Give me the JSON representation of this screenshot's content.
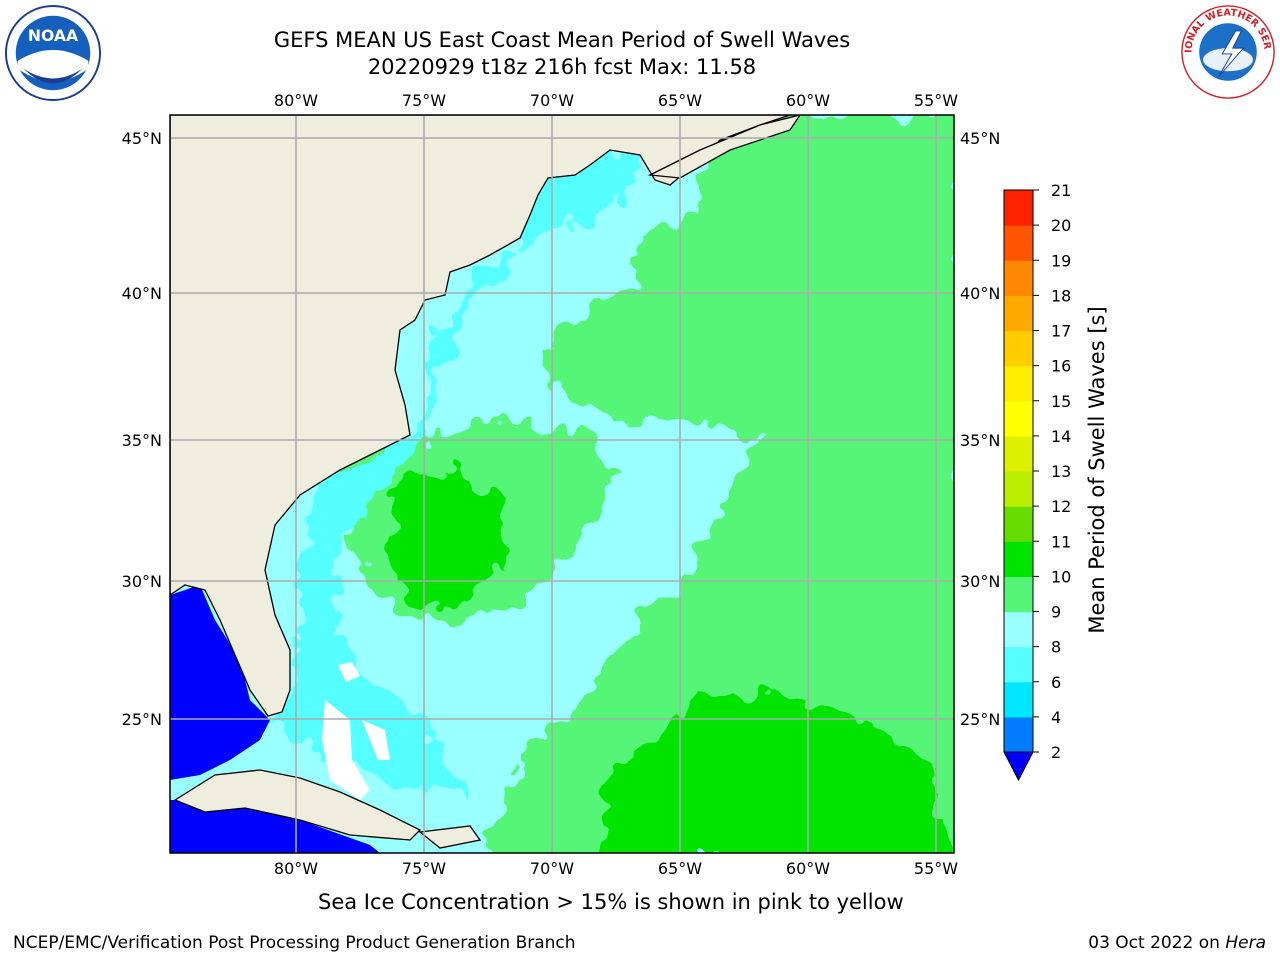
{
  "header": {
    "title_line1": "GEFS MEAN US East Coast Mean Period of Swell Waves",
    "title_line2": "20220929 t18z 216h fcst   Max: 11.58"
  },
  "logos": {
    "left": {
      "icon": "noaa-logo",
      "text": "NOAA"
    },
    "right": {
      "icon": "nws-logo",
      "text": "NATIONAL WEATHER SERVICE"
    }
  },
  "map": {
    "lon_labels": [
      "80°W",
      "75°W",
      "70°W",
      "65°W",
      "60°W",
      "55°W"
    ],
    "lat_labels": [
      "45°N",
      "40°N",
      "35°N",
      "30°N",
      "25°N"
    ],
    "land_color": "#efedde",
    "ocean_shading": [
      {
        "region": "coastal shelf",
        "color": "#55ffff"
      },
      {
        "region": "open ocean north/central",
        "color": "#99ffff"
      },
      {
        "region": "open ocean east/south",
        "color": "#55f577"
      },
      {
        "region": "peak cells",
        "color": "#00e400"
      },
      {
        "region": "Gulf / Caribbean sheltered",
        "color": "#0000ff"
      }
    ]
  },
  "colorbar": {
    "label": "Mean Period of Swell Waves [s]",
    "ticks": [
      "2",
      "4",
      "6",
      "8",
      "9",
      "10",
      "11",
      "12",
      "13",
      "14",
      "15",
      "16",
      "17",
      "18",
      "19",
      "20",
      "21"
    ],
    "colors": [
      "#007cff",
      "#00e6ff",
      "#55ffff",
      "#99ffff",
      "#55f577",
      "#00e400",
      "#66dd00",
      "#bbee00",
      "#ddf000",
      "#ffff00",
      "#ffee00",
      "#ffcc00",
      "#ffaa00",
      "#ff8800",
      "#ff5500",
      "#ff2200",
      "#ff0000"
    ],
    "under_color": "#0000ff"
  },
  "note": "Sea Ice Concentration > 15% is shown in pink to yellow",
  "footer": {
    "left": "NCEP/EMC/Verification Post Processing Product Generation Branch",
    "date": "03 Oct 2022 on ",
    "host": "Hera"
  }
}
